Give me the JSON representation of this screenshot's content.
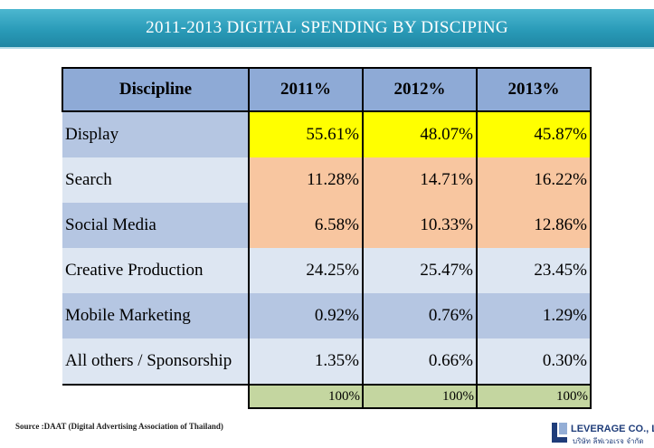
{
  "title": "2011-2013 DIGITAL SPENDING BY DISCIPING",
  "colors": {
    "title_bar": "#2a9bb8",
    "header": "#8eaad6",
    "row_dark": "#b5c6e2",
    "row_light": "#dde6f2",
    "highlight_yellow": "#ffff00",
    "highlight_peach": "#f8c6a0",
    "total": "#c4d6a0",
    "logo": "#1f3d7a"
  },
  "chart_data": {
    "type": "table",
    "title": "2011-2013 DIGITAL SPENDING BY DISCIPING",
    "columns": [
      "Discipline",
      "2011%",
      "2012%",
      "2013%"
    ],
    "rows": [
      {
        "label": "Display",
        "values": [
          "55.61%",
          "48.07%",
          "45.87%"
        ],
        "highlight": "yellow"
      },
      {
        "label": "Search",
        "values": [
          "11.28%",
          "14.71%",
          "16.22%"
        ],
        "highlight": "peach"
      },
      {
        "label": "Social Media",
        "values": [
          "6.58%",
          "10.33%",
          "12.86%"
        ],
        "highlight": "peach"
      },
      {
        "label": "Creative Production",
        "values": [
          "24.25%",
          "25.47%",
          "23.45%"
        ],
        "highlight": "none"
      },
      {
        "label": "Mobile Marketing",
        "values": [
          "0.92%",
          "0.76%",
          "1.29%"
        ],
        "highlight": "none"
      },
      {
        "label": "All others / Sponsorship",
        "values": [
          "1.35%",
          "0.66%",
          "0.30%"
        ],
        "highlight": "none"
      }
    ],
    "totals": [
      "100%",
      "100%",
      "100%"
    ]
  },
  "source": "Source :DAAT (Digital Advertising Association of Thailand)",
  "logo": {
    "name": "LEVERAGE CO., LTD",
    "subtitle": "บริษัท ลีฟเวอเรจ จำกัด",
    "icon": "leverage-logo-icon"
  }
}
